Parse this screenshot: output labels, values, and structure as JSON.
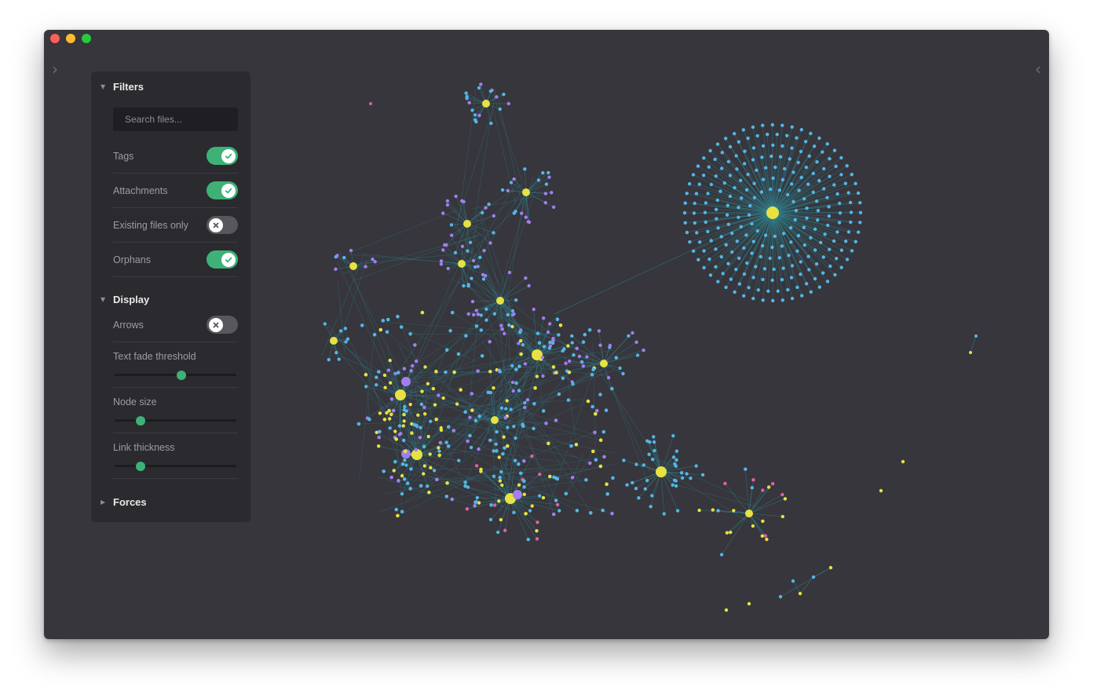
{
  "window": {
    "traffic_lights": [
      "close",
      "minimize",
      "zoom"
    ]
  },
  "edges": {
    "left_icon": "chevron-right-icon",
    "right_icon": "chevron-left-icon"
  },
  "panel": {
    "filters": {
      "title": "Filters",
      "search": {
        "placeholder": "Search files...",
        "value": ""
      },
      "toggles": [
        {
          "label": "Tags",
          "on": true
        },
        {
          "label": "Attachments",
          "on": true
        },
        {
          "label": "Existing files only",
          "on": false
        },
        {
          "label": "Orphans",
          "on": true
        }
      ]
    },
    "display": {
      "title": "Display",
      "arrows": {
        "label": "Arrows",
        "on": false
      },
      "sliders": [
        {
          "label": "Text fade threshold",
          "value": 0.55
        },
        {
          "label": "Node size",
          "value": 0.21
        },
        {
          "label": "Link thickness",
          "value": 0.21
        }
      ]
    },
    "forces": {
      "title": "Forces",
      "expanded": false
    }
  },
  "colors": {
    "note": "#54b6e6",
    "tag": "#e7e241",
    "attachment": "#a37ef0",
    "other": "#e060a8",
    "link": "#2e8c99",
    "accent": "#3eb276"
  }
}
